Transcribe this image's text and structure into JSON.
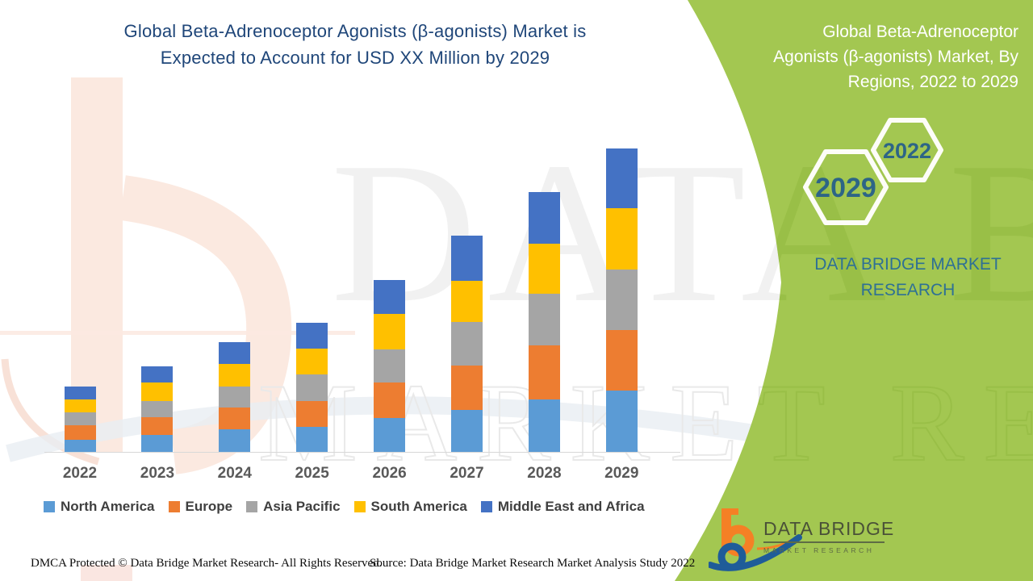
{
  "header": {
    "title_line1": "Global Beta-Adrenoceptor Agonists (β-agonists) Market is",
    "title_line2": "Expected to Account for USD XX Million by 2029",
    "title_color": "#1F4679"
  },
  "chart_data": {
    "type": "bar",
    "stacked": true,
    "title": "Global Beta-Adrenoceptor Agonists (β-agonists) Market is Expected to Account for USD XX Million by 2029",
    "xlabel": "",
    "ylabel": "",
    "y_axis_visible": false,
    "gridlines": false,
    "value_labels": "none (values shown as XX / unlabeled; heights estimated in relative units)",
    "legend_position": "bottom",
    "categories": [
      "2022",
      "2023",
      "2024",
      "2025",
      "2026",
      "2027",
      "2028",
      "2029"
    ],
    "series": [
      {
        "name": "North America",
        "color": "#5B9BD5",
        "values": [
          15,
          21,
          28,
          31,
          42,
          52,
          65,
          76
        ]
      },
      {
        "name": "Europe",
        "color": "#ED7D31",
        "values": [
          18,
          22,
          27,
          32,
          44,
          55,
          67,
          75
        ]
      },
      {
        "name": "Asia Pacific",
        "color": "#A5A5A5",
        "values": [
          16,
          20,
          26,
          33,
          41,
          54,
          64,
          75
        ]
      },
      {
        "name": "South America",
        "color": "#FFC000",
        "values": [
          16,
          23,
          28,
          32,
          44,
          51,
          62,
          76
        ]
      },
      {
        "name": "Middle East and Africa",
        "color": "#4472C4",
        "values": [
          16,
          20,
          27,
          32,
          42,
          56,
          64,
          74
        ]
      }
    ]
  },
  "right_panel": {
    "bg_color": "#A3C751",
    "title_line1": "Global Beta-Adrenoceptor",
    "title_line2": "Agonists (β-agonists) Market,  By",
    "title_line3": "Regions, 2022 to 2029",
    "hexagons": [
      {
        "label": "2029"
      },
      {
        "label": "2022"
      }
    ],
    "brand_line1": "DATA BRIDGE MARKET",
    "brand_line2": "RESEARCH",
    "logo": {
      "title": "DATA BRIDGE",
      "subtitle": "MARKET RESEARCH"
    }
  },
  "watermark": {
    "big_text": "DATA BRIDGE",
    "outline_text": "MARKET RESEARCH"
  },
  "footer": {
    "dmca": "DMCA Protected © Data Bridge Market Research- All Rights Reserved.",
    "source": "Source: Data Bridge Market Research Market Analysis Study 2022"
  }
}
